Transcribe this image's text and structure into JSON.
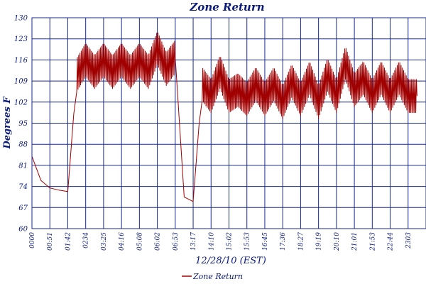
{
  "chart_data": {
    "type": "line",
    "title": "Zone Return",
    "xlabel": "12/28/10 (EST)",
    "ylabel": "Degrees F",
    "ylim": [
      60,
      130
    ],
    "yticks": [
      60,
      67,
      74,
      81,
      88,
      95,
      102,
      109,
      116,
      123,
      130
    ],
    "xtick_labels": [
      "0000",
      "00:51",
      "01:42",
      "0234",
      "03:25",
      "04:16",
      "05:08",
      "06:02",
      "06:53",
      "13:17",
      "14:10",
      "15:02",
      "15:53",
      "16:45",
      "17:36",
      "18:27",
      "19:19",
      "20:10",
      "21:01",
      "21:53",
      "22:44",
      "2303"
    ],
    "grid": true,
    "legend_position": "bottom-center",
    "colors": {
      "series": "#a00000",
      "grid": "#1a2a8a",
      "text": "#0a1a7a"
    },
    "series": [
      {
        "name": "Zone Return",
        "x": [
          0,
          0.5,
          1,
          1.5,
          2,
          2.5,
          3,
          3.5,
          4,
          4.5,
          5,
          5.5,
          6,
          6.5,
          7,
          7.5,
          8,
          8.5,
          9,
          9.5,
          10,
          10.5,
          11,
          11.5,
          12,
          12.5,
          13,
          13.5,
          14,
          14.5,
          15,
          15.5,
          16,
          16.5,
          17,
          17.5,
          18,
          18.5,
          19,
          19.5,
          20,
          20.5,
          21,
          21.5
        ],
        "y": [
          84,
          76,
          73.5,
          72.8,
          72.3,
          111,
          116,
          112,
          116,
          112,
          116,
          112,
          116,
          112,
          120,
          113,
          117,
          70.5,
          69,
          108,
          104,
          112,
          104,
          106,
          103,
          108,
          103,
          108,
          102,
          109,
          103,
          110,
          102,
          111,
          104,
          115,
          106,
          110,
          104,
          110,
          104,
          110,
          104,
          104
        ]
      }
    ]
  }
}
